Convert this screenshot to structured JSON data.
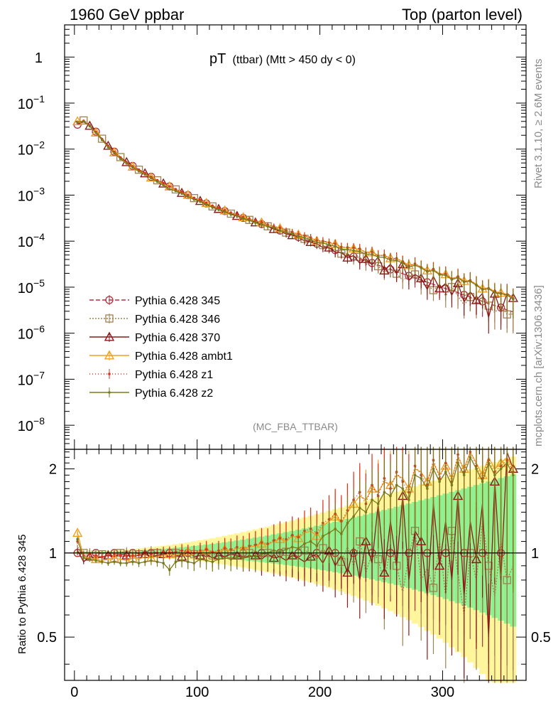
{
  "header": {
    "left": "1960 GeV ppbar",
    "right": "Top (parton level)"
  },
  "side": {
    "top": "Rivet 3.1.10, ≥ 2.6M events",
    "bottom": "mcplots.cern.ch [arXiv:1306.3436]"
  },
  "chart_data": [
    {
      "panel": "main",
      "type": "line",
      "title": "pT",
      "title_sub": "(ttbar) (Mtt > 450 dy < 0)",
      "watermark": "(MC_FBA_TTBAR)",
      "xlabel": "",
      "ylabel": "",
      "yscale": "log",
      "xlim": [
        -8,
        368
      ],
      "ylim": [
        3e-09,
        5
      ],
      "x_ticks": [
        0,
        100,
        200,
        300
      ],
      "y_ticks": [
        {
          "value": 1,
          "mantissa": "1",
          "exp": ""
        },
        {
          "value": 0.1,
          "mantissa": "10",
          "exp": "−1"
        },
        {
          "value": 0.01,
          "mantissa": "10",
          "exp": "−2"
        },
        {
          "value": 0.001,
          "mantissa": "10",
          "exp": "−3"
        },
        {
          "value": 0.0001,
          "mantissa": "10",
          "exp": "−4"
        },
        {
          "value": 1e-05,
          "mantissa": "10",
          "exp": "−5"
        },
        {
          "value": 1e-06,
          "mantissa": "10",
          "exp": "−6"
        },
        {
          "value": 1e-07,
          "mantissa": "10",
          "exp": "−7"
        },
        {
          "value": 1e-08,
          "mantissa": "10",
          "exp": "−8"
        }
      ],
      "legend_position": "bottom-left",
      "x": [
        2.5,
        7.5,
        12.5,
        17.5,
        22.5,
        27.5,
        32.5,
        37.5,
        42.5,
        47.5,
        52.5,
        57.5,
        62.5,
        67.5,
        72.5,
        77.5,
        82.5,
        87.5,
        92.5,
        97.5,
        102.5,
        107.5,
        112.5,
        117.5,
        122.5,
        127.5,
        132.5,
        137.5,
        142.5,
        147.5,
        152.5,
        157.5,
        162.5,
        167.5,
        172.5,
        177.5,
        182.5,
        187.5,
        192.5,
        197.5,
        202.5,
        207.5,
        212.5,
        217.5,
        222.5,
        227.5,
        232.5,
        237.5,
        242.5,
        247.5,
        252.5,
        257.5,
        262.5,
        267.5,
        272.5,
        277.5,
        282.5,
        287.5,
        292.5,
        297.5,
        302.5,
        307.5,
        312.5,
        317.5,
        322.5,
        327.5,
        332.5,
        337.5,
        342.5,
        347.5,
        352.5,
        357.5
      ],
      "reference": [
        0.034,
        0.042,
        0.033,
        0.024,
        0.017,
        0.012,
        0.0088,
        0.0067,
        0.0053,
        0.0043,
        0.0036,
        0.003,
        0.0025,
        0.0021,
        0.0018,
        0.00155,
        0.00133,
        0.00115,
        0.001,
        0.00087,
        0.00076,
        0.00066,
        0.00058,
        0.00051,
        0.00045,
        0.0004,
        0.00036,
        0.00032,
        0.00029,
        0.00026,
        0.000235,
        0.00021,
        0.00019,
        0.00017,
        0.000152,
        0.000137,
        0.000123,
        0.00011,
        9.85e-05,
        8.8e-05,
        7.9e-05,
        7.1e-05,
        6.4e-05,
        5.75e-05,
        5.15e-05,
        4.62e-05,
        4.15e-05,
        3.73e-05,
        3.35e-05,
        3e-05,
        2.7e-05,
        2.43e-05,
        2.18e-05,
        1.96e-05,
        1.76e-05,
        1.58e-05,
        1.42e-05,
        1.28e-05,
        1.15e-05,
        1.04e-05,
        9.3e-06,
        8.4e-06,
        7.6e-06,
        6.8e-06,
        6.1e-06,
        5.5e-06,
        4.9e-06,
        4.4e-06,
        4e-06,
        3.6e-06,
        3.2e-06,
        2.9e-06
      ],
      "series": [
        {
          "name": "Pythia 6.428 345",
          "color": "#b03040",
          "dash": "6,3",
          "marker": "circle",
          "ratio": [
            1.0,
            1.0,
            1.0,
            1.0,
            1.0,
            1.0,
            1.0,
            1.0,
            1.0,
            1.0,
            1.0,
            1.0,
            1.0,
            1.0,
            1.0,
            1.0,
            1.0,
            1.0,
            1.0,
            1.0,
            1.0,
            1.0,
            1.0,
            1.0,
            1.0,
            1.0,
            1.0,
            1.0,
            1.0,
            1.0,
            1.0,
            1.0,
            1.0,
            1.0,
            1.0,
            1.0,
            1.0,
            1.0,
            1.0,
            1.0,
            1.0,
            1.0,
            1.0,
            1.0,
            1.0,
            1.0,
            1.0,
            1.0,
            1.0,
            1.0,
            1.0,
            1.0,
            1.0,
            1.0,
            1.0,
            1.0,
            1.0,
            1.0,
            1.0,
            1.0,
            1.0,
            1.0,
            1.0,
            1.0,
            1.0,
            1.0,
            1.0,
            1.0,
            1.0,
            1.0,
            1.0,
            1.0
          ]
        },
        {
          "name": "Pythia 6.428 346",
          "color": "#a08050",
          "dash": "2,2",
          "marker": "square",
          "ratio": [
            1.05,
            1.0,
            1.02,
            1.01,
            0.99,
            1.0,
            1.01,
            1.0,
            1.02,
            1.0,
            0.99,
            1.01,
            1.02,
            1.0,
            0.99,
            1.01,
            1.0,
            1.02,
            1.0,
            0.99,
            1.01,
            1.0,
            0.98,
            1.0,
            1.01,
            0.99,
            1.0,
            0.98,
            1.0,
            1.02,
            0.97,
            1.0,
            1.03,
            0.98,
            1.01,
            0.99,
            0.96,
            1.02,
            1.0,
            0.95,
            1.04,
            0.97,
            1.0,
            0.93,
            1.05,
            0.9,
            1.1,
            0.85,
            1.0,
            0.95,
            0.78,
            1.05,
            0.9,
            0.72,
            0.98,
            1.2,
            0.8,
            0.88,
            0.75,
            1.1,
            0.7,
            1.2,
            0.85,
            0.6,
            1.0,
            0.8,
            1.3,
            0.9,
            0.7,
            1.1,
            0.8,
            0.9
          ]
        },
        {
          "name": "Pythia 6.428 370",
          "color": "#8b1a1a",
          "dash": "",
          "marker": "triangle",
          "ratio": [
            1.02,
            0.93,
            0.97,
            0.96,
            0.97,
            0.98,
            0.97,
            0.99,
            0.98,
            0.97,
            0.98,
            0.99,
            0.97,
            0.98,
            0.99,
            1.0,
            0.98,
            0.97,
            1.01,
            0.97,
            0.98,
            0.99,
            0.96,
            0.98,
            0.97,
            0.99,
            0.98,
            0.96,
            0.97,
            0.98,
            0.95,
            0.99,
            0.96,
            0.97,
            0.94,
            0.98,
            0.96,
            0.93,
            0.97,
            0.99,
            0.92,
            1.02,
            0.9,
            0.98,
            0.85,
            1.05,
            0.8,
            1.1,
            0.92,
            1.5,
            0.85,
            1.3,
            0.9,
            1.6,
            0.8,
            1.2,
            1.1,
            0.7,
            1.5,
            0.9,
            1.3,
            0.8,
            1.6,
            0.7,
            1.3,
            0.95,
            1.5,
            0.5,
            1.8,
            0.8,
            2.3,
            2.0
          ]
        },
        {
          "name": "Pythia 6.428 ambt1",
          "color": "#f0a020",
          "dash": "",
          "marker": "triangle",
          "ratio": [
            1.18,
            0.97,
            0.96,
            0.95,
            0.94,
            0.95,
            0.96,
            0.95,
            0.94,
            0.96,
            0.95,
            0.97,
            0.96,
            0.97,
            0.98,
            0.99,
            0.98,
            1.0,
            1.01,
            1.0,
            1.01,
            1.02,
            1.0,
            1.01,
            1.03,
            1.02,
            1.04,
            1.03,
            1.05,
            1.06,
            1.08,
            1.07,
            1.1,
            1.12,
            1.1,
            1.15,
            1.13,
            1.18,
            1.2,
            1.15,
            1.25,
            1.3,
            1.35,
            1.28,
            1.4,
            1.5,
            1.6,
            1.55,
            1.7,
            1.65,
            1.8,
            1.75,
            1.9,
            1.85,
            1.7,
            2.0,
            1.95,
            1.8,
            2.1,
            1.9,
            2.05,
            1.85,
            2.2,
            2.0,
            2.3,
            2.1,
            1.9,
            2.2,
            2.0,
            2.1,
            2.2,
            2.0
          ]
        },
        {
          "name": "Pythia 6.428 z1",
          "color": "#dd3020",
          "dash": "1,3",
          "marker": "dot",
          "ratio": [
            1.1,
            0.98,
            0.99,
            0.98,
            0.97,
            0.98,
            0.99,
            0.98,
            0.97,
            0.98,
            0.99,
            1.0,
            0.99,
            1.0,
            1.01,
            1.0,
            1.01,
            1.02,
            1.01,
            1.0,
            1.02,
            1.03,
            1.01,
            1.02,
            1.04,
            1.03,
            1.05,
            1.04,
            1.06,
            1.07,
            1.09,
            1.08,
            1.11,
            1.13,
            1.12,
            1.16,
            1.14,
            1.2,
            1.22,
            1.18,
            1.28,
            1.32,
            1.38,
            1.3,
            1.42,
            1.55,
            1.65,
            1.5,
            1.75,
            1.6,
            1.85,
            1.7,
            1.95,
            1.8,
            1.65,
            2.05,
            1.9,
            1.75,
            2.15,
            1.85,
            2.1,
            1.8,
            2.25,
            1.95,
            2.3,
            2.05,
            1.85,
            2.15,
            1.95,
            2.05,
            2.15,
            1.95
          ]
        },
        {
          "name": "Pythia 6.428 z2",
          "color": "#7a7a1a",
          "dash": "",
          "marker": "dot",
          "ratio": [
            1.12,
            0.96,
            0.95,
            0.94,
            0.93,
            0.92,
            0.93,
            0.92,
            0.92,
            0.93,
            0.92,
            0.93,
            0.94,
            0.93,
            0.92,
            0.87,
            0.93,
            0.94,
            0.93,
            0.92,
            0.95,
            0.94,
            0.93,
            0.95,
            0.96,
            0.95,
            0.97,
            0.96,
            0.98,
            0.97,
            0.99,
            1.0,
            1.02,
            1.01,
            1.03,
            1.05,
            1.04,
            1.08,
            1.1,
            1.06,
            1.15,
            1.18,
            1.22,
            1.17,
            1.28,
            1.35,
            1.45,
            1.4,
            1.55,
            1.5,
            1.65,
            1.6,
            1.75,
            1.7,
            1.55,
            1.9,
            1.85,
            1.7,
            2.0,
            1.8,
            1.95,
            1.75,
            2.1,
            1.9,
            2.2,
            2.0,
            1.8,
            2.1,
            1.9,
            2.0,
            2.1,
            1.9
          ]
        }
      ]
    },
    {
      "panel": "ratio",
      "type": "line",
      "ylabel": "Ratio to Pythia 6.428 345",
      "xlabel": "",
      "ylim": [
        0.35,
        2.35
      ],
      "x_ticks": [
        0,
        100,
        200,
        300
      ],
      "y_ticks": [
        0.5,
        1,
        2
      ],
      "bands": [
        {
          "name": "Pythia 6.428 345 uncertainty",
          "color": "#8ef08e"
        },
        {
          "name": "Pythia 6.428 346 uncertainty",
          "color": "#fff59a"
        }
      ]
    }
  ]
}
